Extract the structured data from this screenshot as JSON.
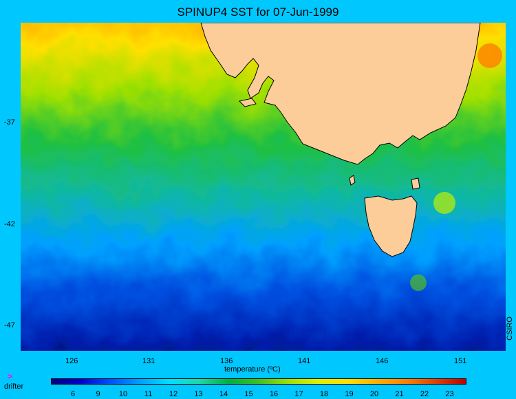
{
  "title": "SPINUP4 SST for 07-Jun-1999",
  "y_ticks": [
    "-37",
    "-42",
    "-47"
  ],
  "x_ticks": [
    "126",
    "131",
    "136",
    "141",
    "146",
    "151"
  ],
  "colorbar_title": "temperature (ºC)",
  "colorbar_labels": [
    "6",
    "9",
    "10",
    "11",
    "12",
    "13",
    "14",
    "15",
    "16",
    "17",
    "18",
    "19",
    "20",
    "21",
    "22",
    "23"
  ],
  "colorbar_colors": [
    "#000080",
    "#0000cd",
    "#0050ff",
    "#00a0ff",
    "#00e0ff",
    "#20d8a0",
    "#00b040",
    "#40c020",
    "#a0e000",
    "#e0f000",
    "#ffe000",
    "#ffb000",
    "#ff8000",
    "#e04000",
    "#c00000"
  ],
  "credit": "CSIRO",
  "legend": {
    "symbol": ">",
    "label": "drifter"
  },
  "map_colors": {
    "land": "#fccc99",
    "coast": "#000000",
    "ocean_ticks": "#000000"
  }
}
